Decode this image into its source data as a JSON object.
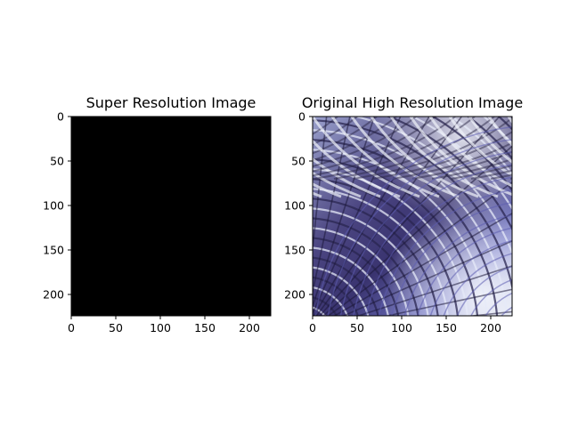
{
  "figure": {
    "background": "#ffffff"
  },
  "chart_data": [
    {
      "type": "image",
      "title": "Super Resolution Image",
      "image_size": [
        224,
        224
      ],
      "xlim": [
        0,
        224
      ],
      "ylim": [
        224,
        0
      ],
      "x_ticks": [
        0,
        50,
        100,
        150,
        200
      ],
      "y_ticks": [
        0,
        50,
        100,
        150,
        200
      ],
      "content": "solid black",
      "fill_color": "#000000"
    },
    {
      "type": "image",
      "title": "Original High Resolution Image",
      "image_size": [
        224,
        224
      ],
      "xlim": [
        0,
        224
      ],
      "ylim": [
        224,
        0
      ],
      "x_ticks": [
        0,
        50,
        100,
        150,
        200
      ],
      "y_ticks": [
        0,
        50,
        100,
        150,
        200
      ],
      "content": "photo of curved lattice roof structure in blue-violet tones",
      "palette": [
        "#1e1930",
        "#5050a0",
        "#a0a6dc",
        "#e8ecf8"
      ]
    }
  ]
}
